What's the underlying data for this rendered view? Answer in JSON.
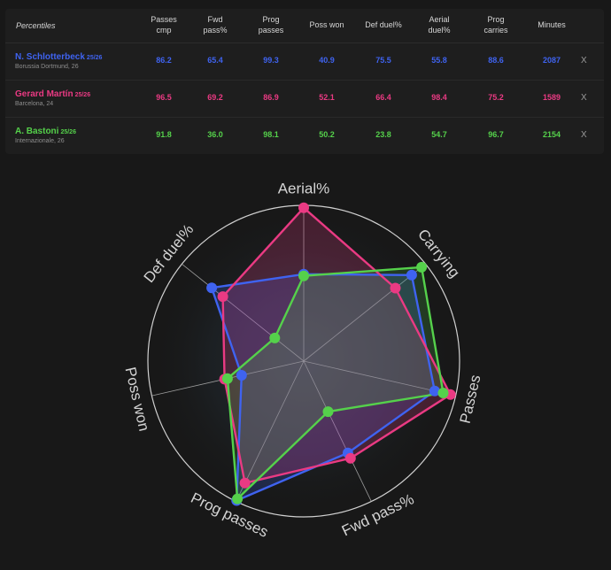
{
  "table": {
    "header_label": "Percentiles",
    "columns": [
      {
        "l1": "Passes",
        "l2": "cmp"
      },
      {
        "l1": "Fwd",
        "l2": "pass%"
      },
      {
        "l1": "Prog",
        "l2": "passes"
      },
      {
        "l1": "Poss won",
        "l2": ""
      },
      {
        "l1": "Def duel%",
        "l2": ""
      },
      {
        "l1": "Aerial",
        "l2": "duel%"
      },
      {
        "l1": "Prog",
        "l2": "carries"
      },
      {
        "l1": "Minutes",
        "l2": ""
      }
    ],
    "remove_label": "X",
    "players": [
      {
        "name": "N. Schlotterbeck",
        "season": "25/26",
        "club": "Borussia Dortmund, 26",
        "color": "#3f63f0",
        "values": [
          "86.2",
          "65.4",
          "99.3",
          "40.9",
          "75.5",
          "55.8",
          "88.6",
          "2087"
        ]
      },
      {
        "name": "Gerard Martín",
        "season": "25/26",
        "club": "Barcelona, 24",
        "color": "#ea3a83",
        "values": [
          "96.5",
          "69.2",
          "86.9",
          "52.1",
          "66.4",
          "98.4",
          "75.2",
          "1589"
        ]
      },
      {
        "name": "A. Bastoni",
        "season": "25/26",
        "club": "Internazionale, 26",
        "color": "#55d14b",
        "values": [
          "91.8",
          "36.0",
          "98.1",
          "50.2",
          "23.8",
          "54.7",
          "96.7",
          "2154"
        ]
      }
    ]
  },
  "chart_data": {
    "type": "radar",
    "axes": [
      "Aerial%",
      "Carrying",
      "Passes",
      "Fwd pass%",
      "Prog passes",
      "Poss won",
      "Def duel%"
    ],
    "range": [
      0,
      100
    ],
    "series": [
      {
        "name": "N. Schlotterbeck",
        "color": "#3f63f0",
        "values": [
          55.8,
          88.6,
          86.2,
          65.4,
          99.3,
          40.9,
          75.5
        ]
      },
      {
        "name": "Gerard Martín",
        "color": "#ea3a83",
        "values": [
          98.4,
          75.2,
          96.5,
          69.2,
          86.9,
          52.1,
          66.4
        ]
      },
      {
        "name": "A. Bastoni",
        "color": "#55d14b",
        "values": [
          54.7,
          96.7,
          91.8,
          36.0,
          98.1,
          50.2,
          23.8
        ]
      }
    ],
    "colors": {
      "grid": "#d0d0d0",
      "background": "#181818"
    }
  }
}
